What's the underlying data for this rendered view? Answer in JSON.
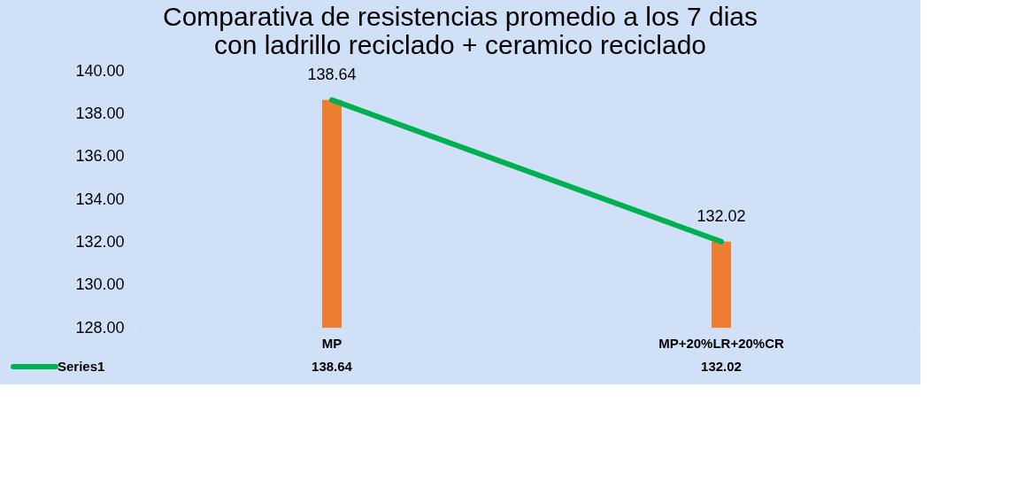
{
  "chart_data": {
    "type": "bar",
    "title": [
      "Comparativa de resistencias promedio a los 7 dias",
      "con ladrillo reciclado + ceramico reciclado"
    ],
    "categories": [
      "MP",
      "MP+20%LR+20%CR"
    ],
    "series": [
      {
        "color": "#ed7d31",
        "values": [
          138.64,
          132.02
        ]
      },
      {
        "type": "line",
        "name": "Series1",
        "color": "#00b050",
        "values": [
          138.64,
          132.02
        ]
      }
    ],
    "ylim": [
      128,
      140
    ],
    "yticks": [
      {
        "value": 128,
        "label": "128.00"
      },
      {
        "value": 130,
        "label": "130.00"
      },
      {
        "value": 132,
        "label": "132.00"
      },
      {
        "value": 134,
        "label": "134.00"
      },
      {
        "value": 136,
        "label": "136.00"
      },
      {
        "value": 138,
        "label": "138.00"
      },
      {
        "value": 140,
        "label": "140.00"
      }
    ],
    "data_labels": true,
    "legend": "bottom",
    "grid": false
  }
}
